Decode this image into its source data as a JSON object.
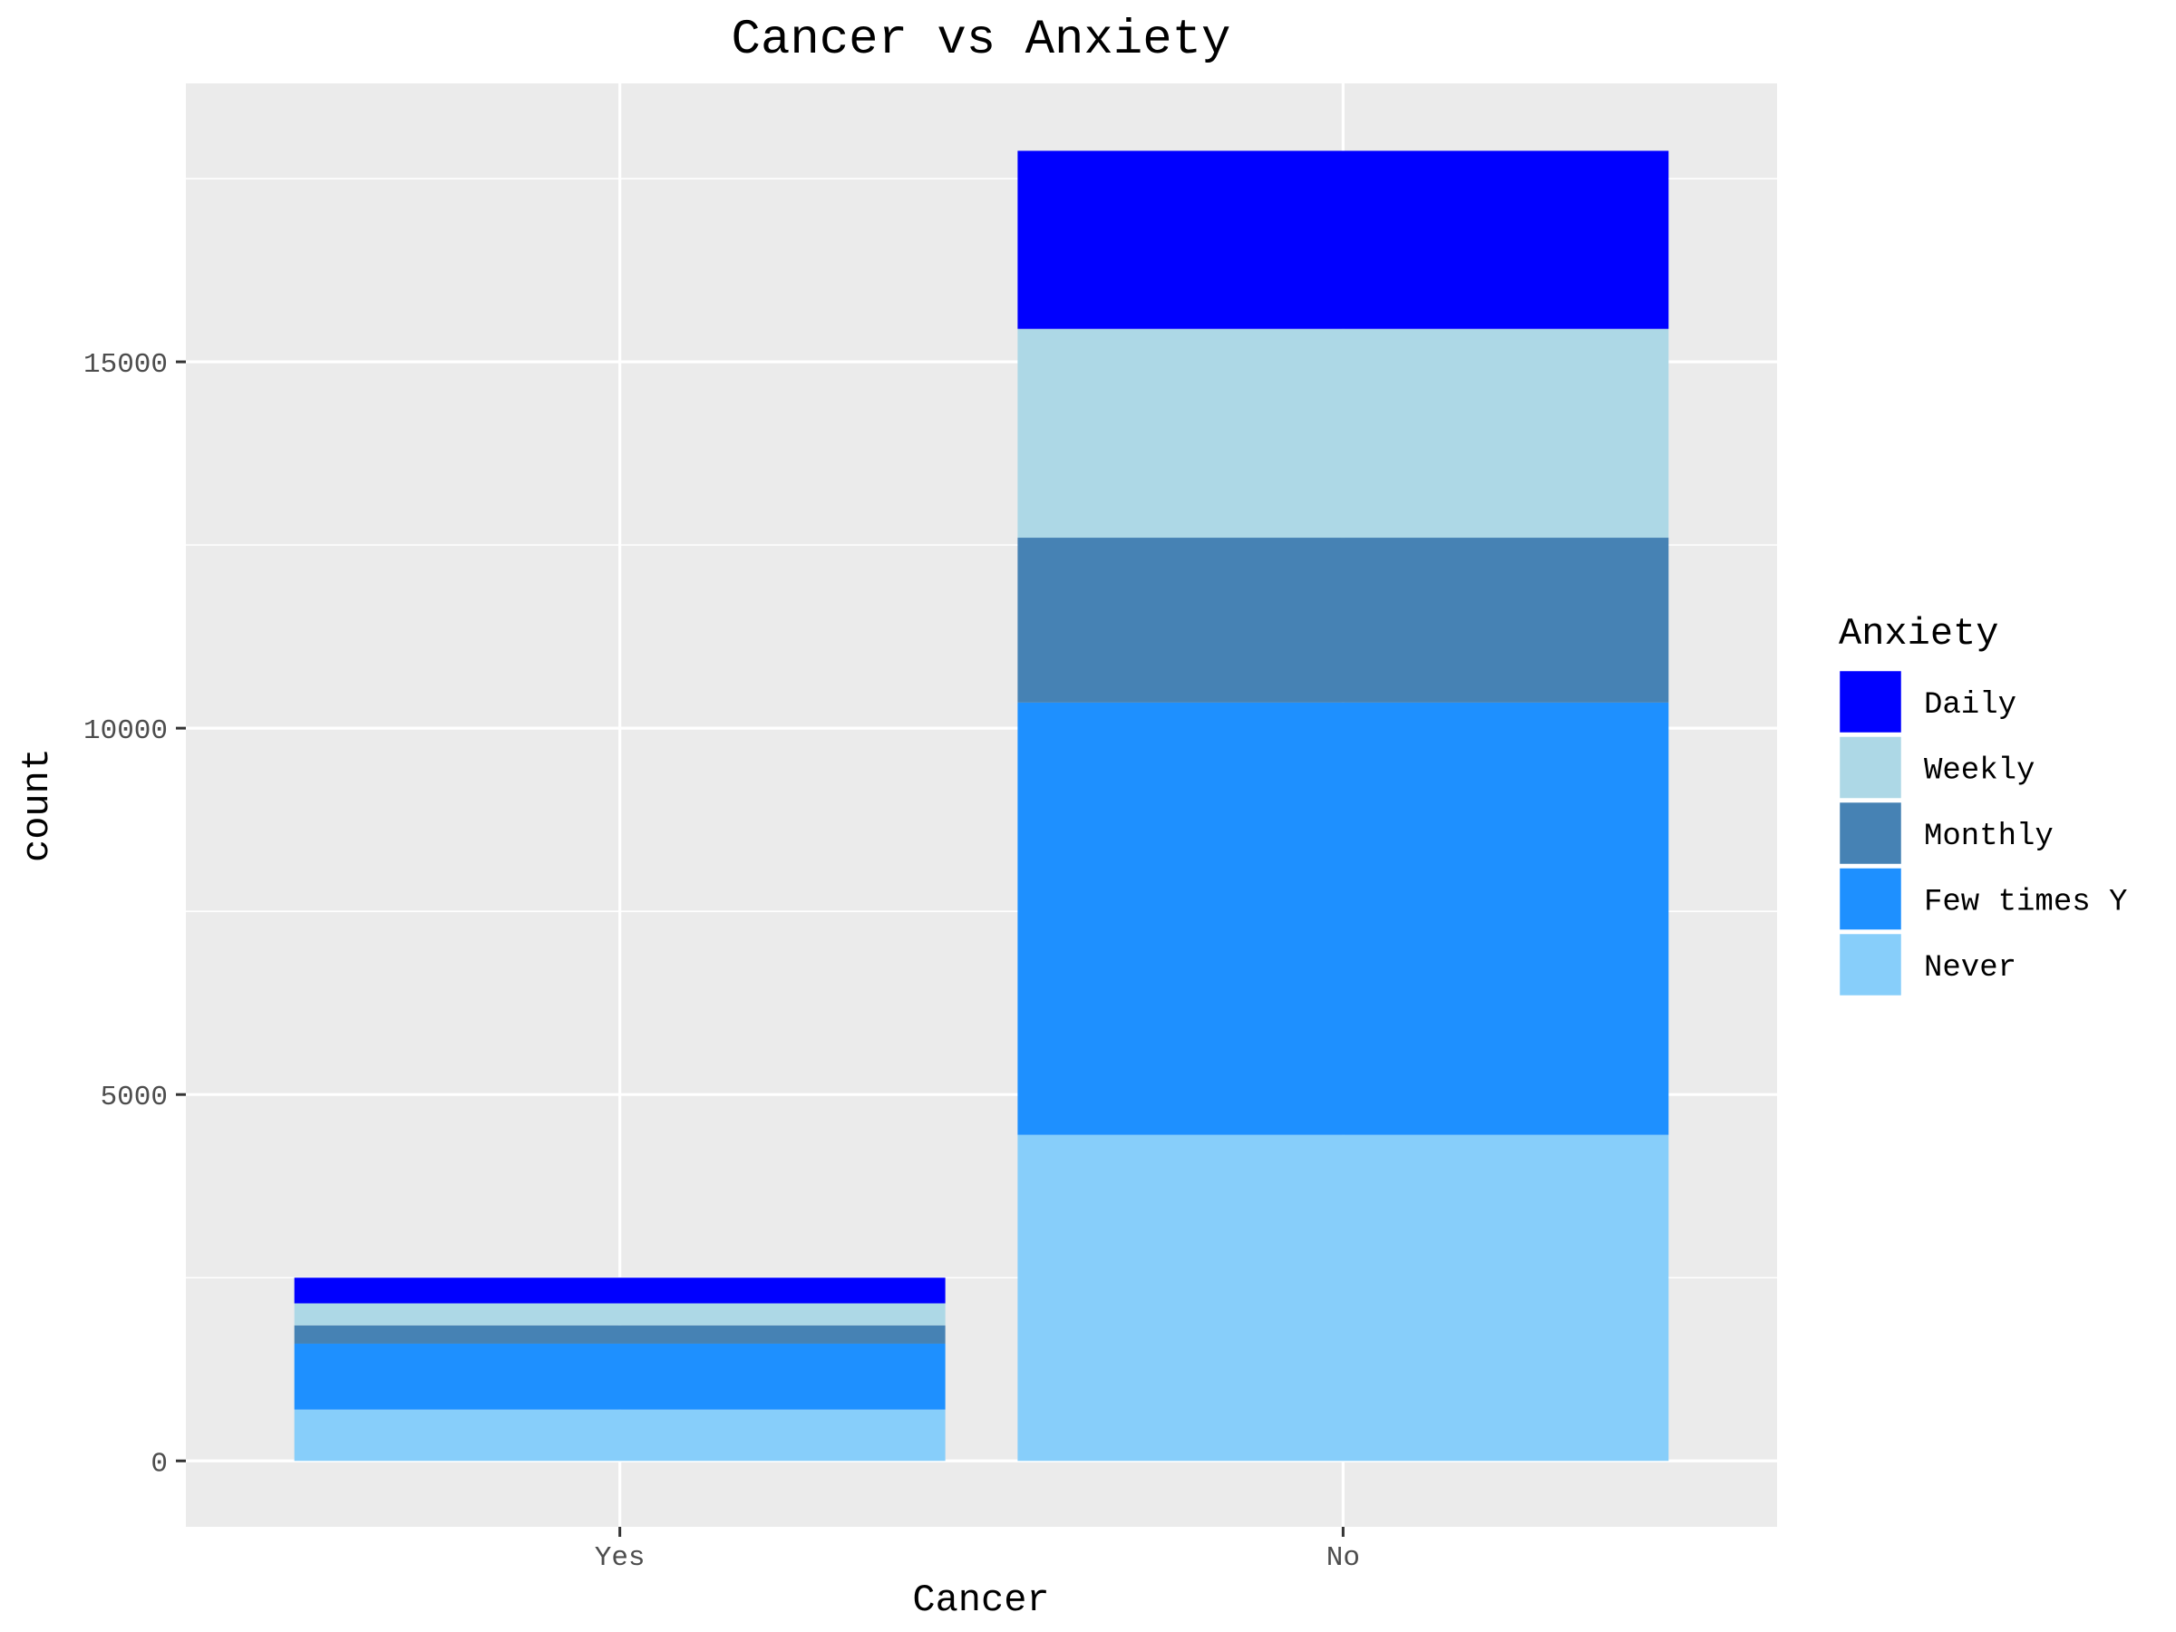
{
  "chart_data": {
    "type": "bar",
    "stacked": true,
    "title": "Cancer vs Anxiety",
    "xlabel": "Cancer",
    "ylabel": "count",
    "categories": [
      "Yes",
      "No"
    ],
    "ylim": [
      -900,
      18800
    ],
    "yticks": [
      0,
      5000,
      10000,
      15000
    ],
    "grid": true,
    "legend": {
      "title": "Anxiety",
      "position": "right"
    },
    "series": [
      {
        "name": "Never",
        "color": "#87CEFA",
        "values": [
          700,
          4450
        ]
      },
      {
        "name": "Few times Y",
        "color": "#1E90FF",
        "values": [
          900,
          5900
        ]
      },
      {
        "name": "Monthly",
        "color": "#4682B4",
        "values": [
          250,
          2250
        ]
      },
      {
        "name": "Weekly",
        "color": "#ADD8E6",
        "values": [
          300,
          2850
        ]
      },
      {
        "name": "Daily",
        "color": "#0000FF",
        "values": [
          350,
          2430
        ]
      }
    ],
    "legend_order": [
      "Daily",
      "Weekly",
      "Monthly",
      "Few times Y",
      "Never"
    ]
  }
}
